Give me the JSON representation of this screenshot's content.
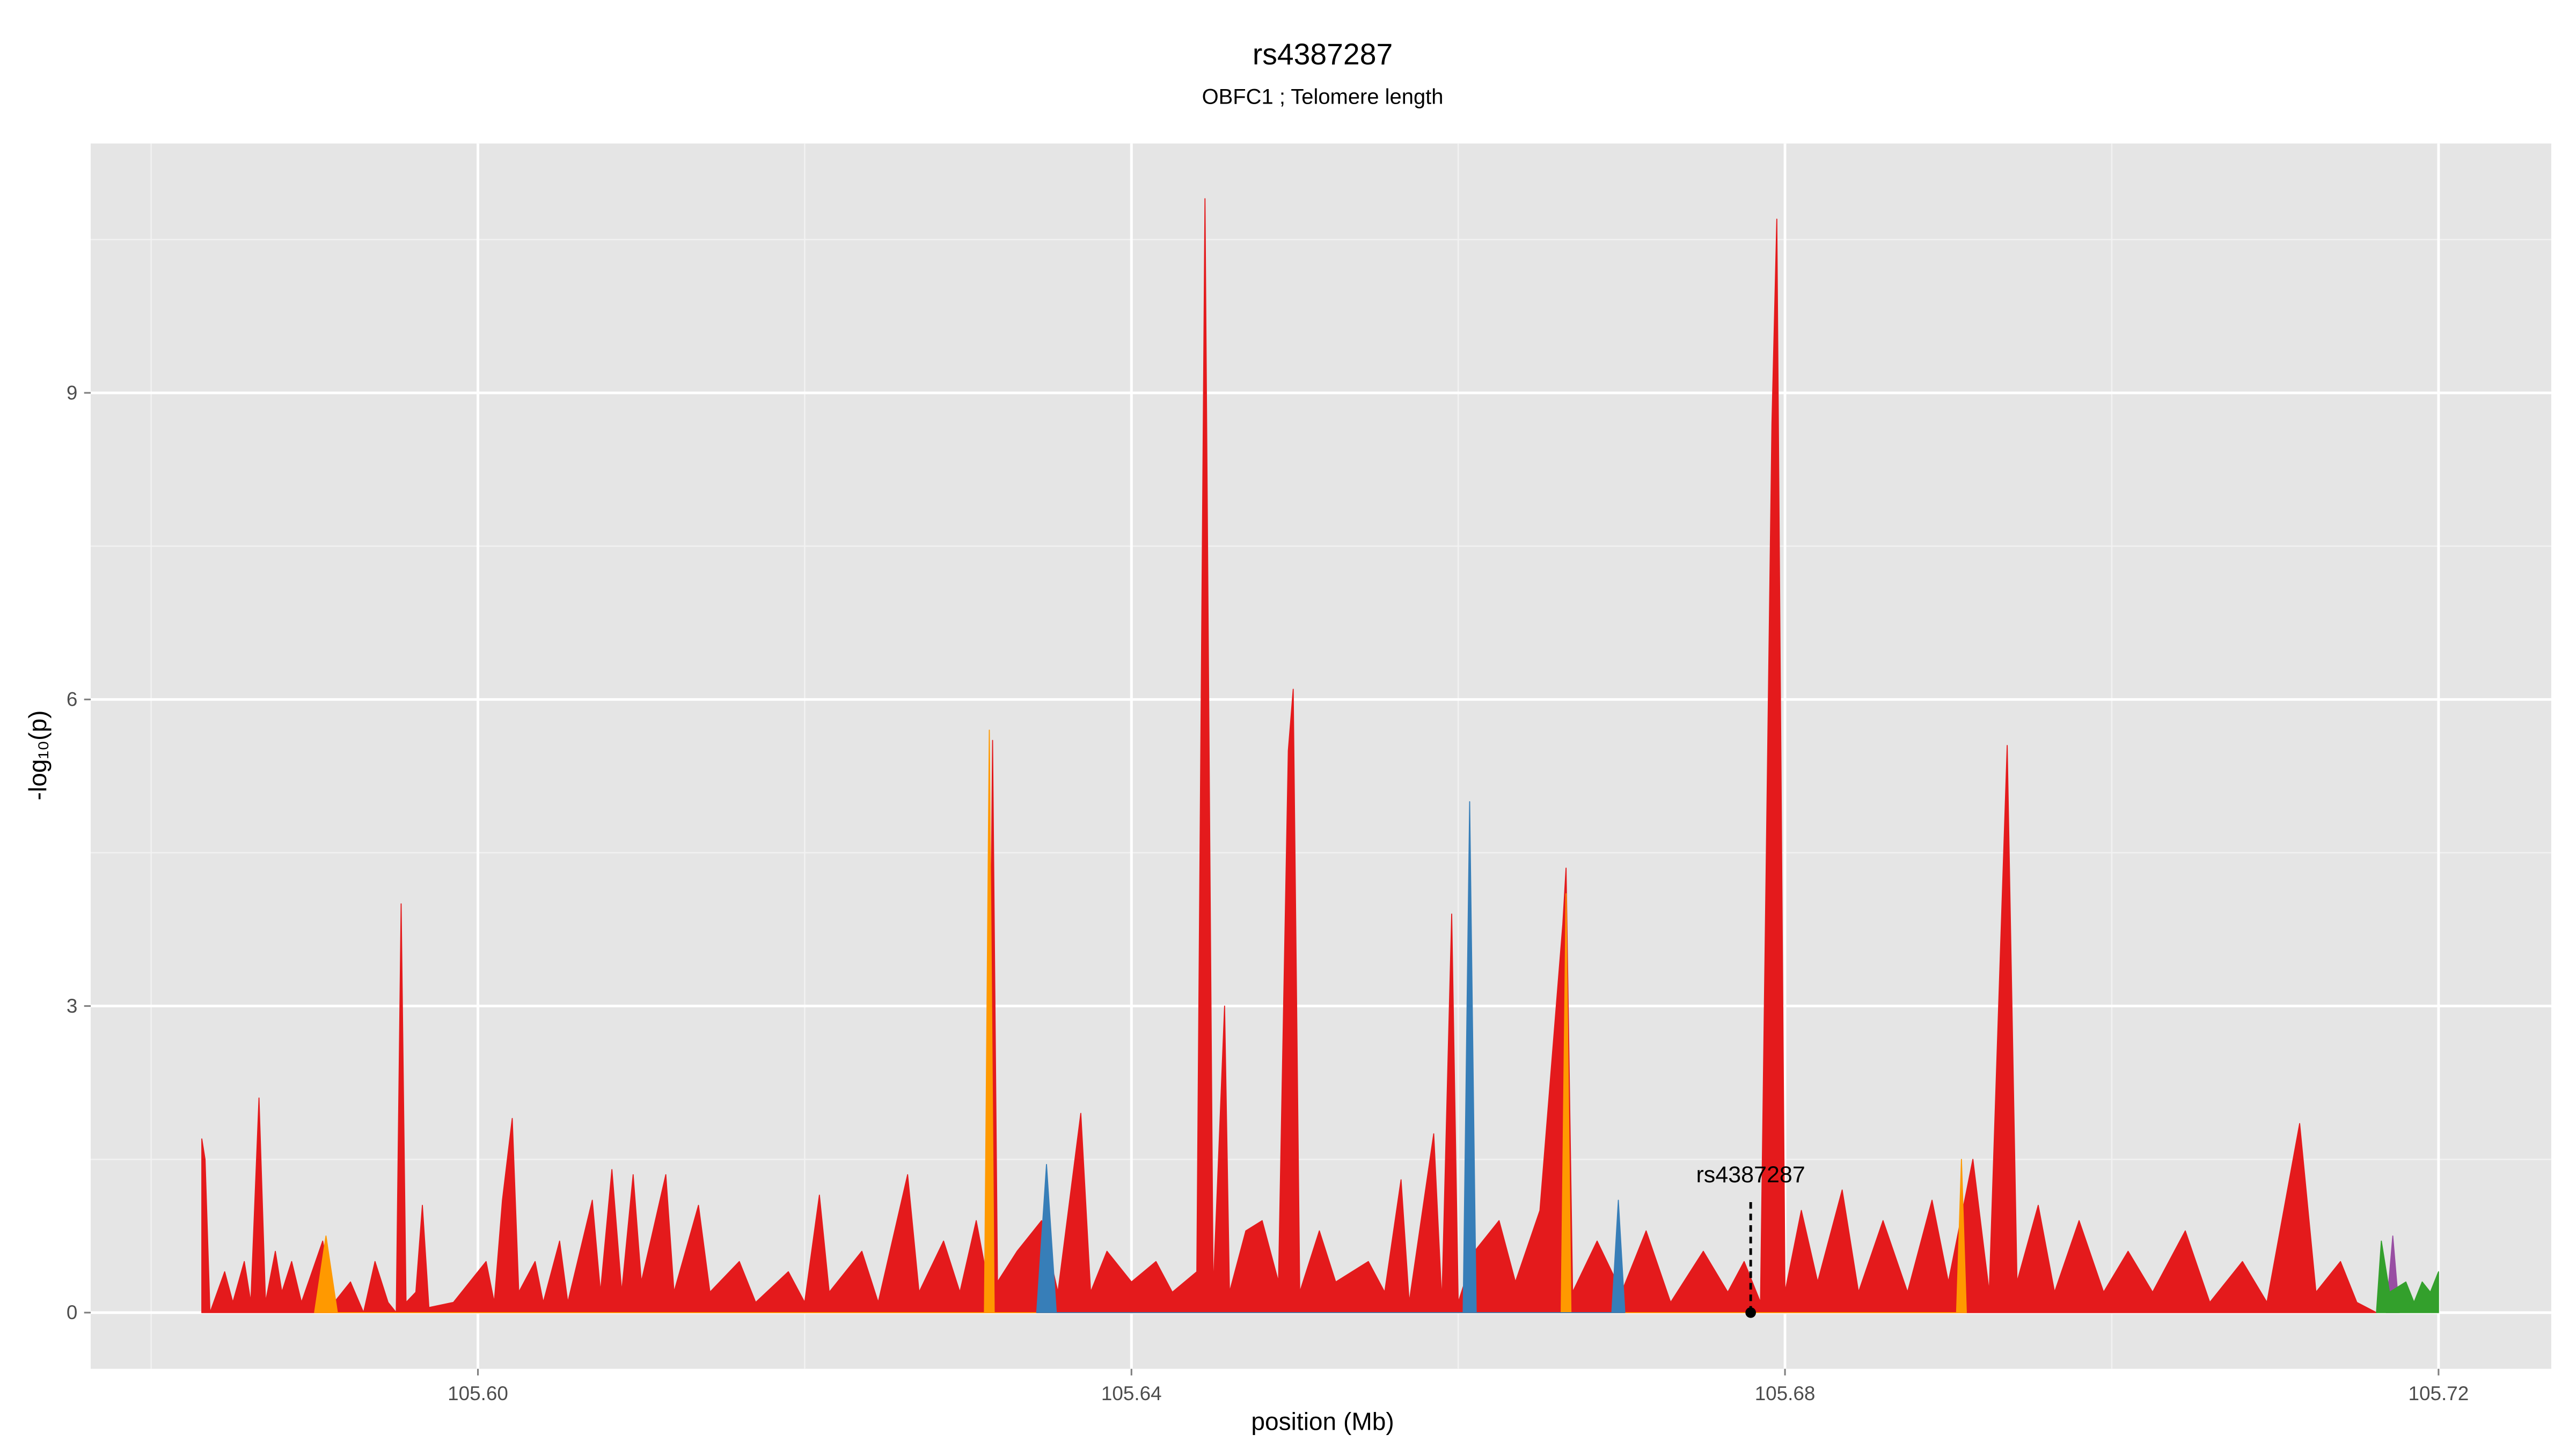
{
  "chart_data": {
    "type": "area",
    "title": "rs4387287",
    "subtitle": "OBFC1 ; Telomere length",
    "x_label": "position (Mb)",
    "y_label": "-log₁₀(p)",
    "xlim": [
      105.5763,
      105.7269
    ],
    "ylim": [
      -0.55,
      11.44
    ],
    "xticks": [
      {
        "value": 105.6,
        "label": "105.60"
      },
      105.64,
      105.68,
      105.72
    ],
    "yticks": [
      0,
      3,
      6,
      9
    ],
    "xminorticks": [
      105.58,
      105.62,
      105.66,
      105.7
    ],
    "yminorticks": [
      1.5,
      4.5,
      7.5,
      10.5
    ],
    "grid": true,
    "series": [
      {
        "color": "#e41a1c",
        "x": [
          105.5831,
          105.5833,
          105.5836,
          105.5845,
          105.585,
          105.5857,
          105.5861,
          105.5866,
          105.587,
          105.5876,
          105.588,
          105.5886,
          105.5892,
          105.5905,
          105.5912,
          105.5922,
          105.593,
          105.5937,
          105.5945,
          105.595,
          105.5953,
          105.5956,
          105.5962,
          105.5966,
          105.597,
          105.5985,
          105.5995,
          105.6005,
          105.601,
          105.6015,
          105.6021,
          105.6025,
          105.6035,
          105.604,
          105.605,
          105.6055,
          105.607,
          105.6075,
          105.6082,
          105.6088,
          105.6095,
          105.61,
          105.6115,
          105.612,
          105.6135,
          105.6142,
          105.616,
          105.617,
          105.619,
          105.62,
          105.6209,
          105.6215,
          105.6235,
          105.6245,
          105.6263,
          105.627,
          105.6285,
          105.6295,
          105.6305,
          105.6312,
          105.6315,
          105.6318,
          105.633,
          105.6345,
          105.6355,
          105.6369,
          105.6375,
          105.6385,
          105.64,
          105.6415,
          105.6425,
          105.644,
          105.6445,
          105.645,
          105.6457,
          105.646,
          105.647,
          105.648,
          105.649,
          105.6496,
          105.6499,
          105.6503,
          105.6515,
          105.6525,
          105.6545,
          105.6555,
          105.6565,
          105.657,
          105.6585,
          105.659,
          105.6596,
          105.66,
          105.661,
          105.6625,
          105.6635,
          105.665,
          105.6664,
          105.6666,
          105.667,
          105.6685,
          105.67,
          105.6715,
          105.673,
          105.675,
          105.6765,
          105.6775,
          105.6785,
          105.6792,
          105.6795,
          105.68,
          105.681,
          105.682,
          105.6835,
          105.6845,
          105.686,
          105.6875,
          105.689,
          105.69,
          105.6915,
          105.6925,
          105.6936,
          105.6942,
          105.6955,
          105.6965,
          105.698,
          105.6995,
          105.701,
          105.7025,
          105.7045,
          105.706,
          105.708,
          105.7095,
          105.7115,
          105.7125,
          105.714,
          105.715,
          105.7162
        ],
        "values": [
          1.7,
          1.5,
          0,
          0.4,
          0.1,
          0.5,
          0.1,
          2.1,
          0.1,
          0.6,
          0.2,
          0.5,
          0.1,
          0.7,
          0.1,
          0.3,
          0,
          0.5,
          0.1,
          0,
          4,
          0.1,
          0.2,
          1.05,
          0.05,
          0.1,
          0.3,
          0.5,
          0.1,
          1.1,
          1.9,
          0.2,
          0.5,
          0.1,
          0.7,
          0.1,
          1.1,
          0.2,
          1.4,
          0.2,
          1.35,
          0.3,
          1.35,
          0.2,
          1.05,
          0.2,
          0.5,
          0.1,
          0.4,
          0.1,
          1.15,
          0.2,
          0.6,
          0.1,
          1.35,
          0.2,
          0.7,
          0.2,
          0.9,
          0.3,
          5.6,
          0.3,
          0.6,
          0.9,
          0.2,
          1.95,
          0.2,
          0.6,
          0.3,
          0.5,
          0.2,
          0.4,
          10.9,
          0.2,
          3,
          0.2,
          0.8,
          0.9,
          0.3,
          5.5,
          6.1,
          0.2,
          0.8,
          0.3,
          0.5,
          0.2,
          1.3,
          0.1,
          1.75,
          0.1,
          3.9,
          0.1,
          0.6,
          0.9,
          0.3,
          1,
          3.8,
          4.35,
          0.2,
          0.7,
          0.2,
          0.8,
          0.1,
          0.6,
          0.2,
          0.5,
          0.1,
          8.7,
          10.7,
          0.2,
          1,
          0.3,
          1.2,
          0.2,
          0.9,
          0.2,
          1.1,
          0.3,
          1.5,
          0.2,
          5.55,
          0.3,
          1.05,
          0.2,
          0.9,
          0.2,
          0.6,
          0.2,
          0.8,
          0.1,
          0.5,
          0.1,
          1.85,
          0.2,
          0.5,
          0.1,
          0
        ]
      },
      {
        "color": "#ff9900",
        "x": [
          105.59,
          105.5907,
          105.5914,
          105.631,
          105.6313,
          105.6316,
          105.6663,
          105.6666,
          105.6669,
          105.6905,
          105.6908,
          105.6911
        ],
        "values": [
          0,
          0.75,
          0,
          0,
          5.7,
          0,
          0,
          4.1,
          0,
          0,
          1.5,
          0
        ]
      },
      {
        "color": "#377eb8",
        "x": [
          105.6342,
          105.6348,
          105.6354,
          105.6603,
          105.6607,
          105.6611,
          105.6694,
          105.6698,
          105.6702
        ],
        "values": [
          0,
          1.45,
          0,
          0,
          5,
          0,
          0,
          1.1,
          0
        ]
      },
      {
        "color": "#984ea3",
        "x": [
          105.7168,
          105.7172,
          105.7176
        ],
        "values": [
          0,
          0.75,
          0
        ]
      },
      {
        "color": "#33a02c",
        "x": [
          105.7162,
          105.7165,
          105.717,
          105.718,
          105.7185,
          105.719,
          105.7195,
          105.72,
          105.72
        ],
        "values": [
          0,
          0.7,
          0.2,
          0.3,
          0.1,
          0.3,
          0.2,
          0.4,
          0
        ]
      }
    ],
    "annotations": [
      {
        "text": "rs4387287",
        "x": 105.6779,
        "y": 0
      }
    ]
  }
}
